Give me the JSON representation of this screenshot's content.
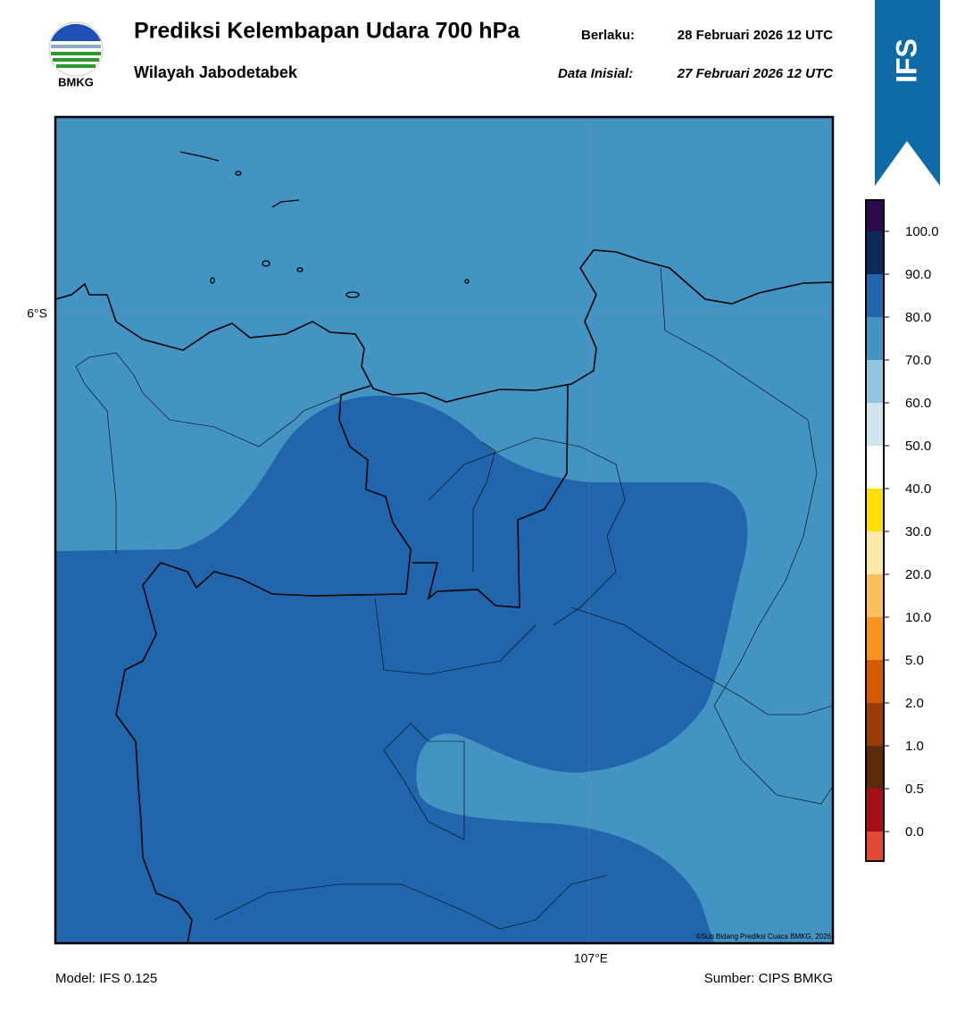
{
  "header": {
    "title": "Prediksi Kelembapan Udara 700 hPa",
    "subtitle": "Wilayah Jabodetabek",
    "valid_label": "Berlaku:",
    "valid": "28 Februari 2026 12 UTC",
    "init_label": "Data Inisial:",
    "init": "27 Februari 2026 12 UTC"
  },
  "logo": {
    "text": "BMKG"
  },
  "badge": {
    "text": "IFS"
  },
  "map": {
    "lat_label": "6°S",
    "lon_label": "107°E",
    "copyright": "©Sub Bidang Prediksi Cuaca BMKG, 2026"
  },
  "colorbar": {
    "labels": [
      "100.0",
      "90.0",
      "80.0",
      "70.0",
      "60.0",
      "50.0",
      "40.0",
      "30.0",
      "20.0",
      "10.0",
      "5.0",
      "2.0",
      "1.0",
      "0.5",
      "0.0"
    ],
    "colors": [
      "#2d0a4e",
      "#0b2a5a",
      "#2166ac",
      "#4393c3",
      "#92c5de",
      "#d1e5f0",
      "#ffffff",
      "#ffe000",
      "#ffe8a8",
      "#fdc05a",
      "#f7931e",
      "#d65a00",
      "#9a3a05",
      "#5a2a0a",
      "#a50f15",
      "#e34a33"
    ]
  },
  "footer": {
    "model": "Model: IFS 0.125",
    "source": "Sumber: CIPS BMKG"
  }
}
